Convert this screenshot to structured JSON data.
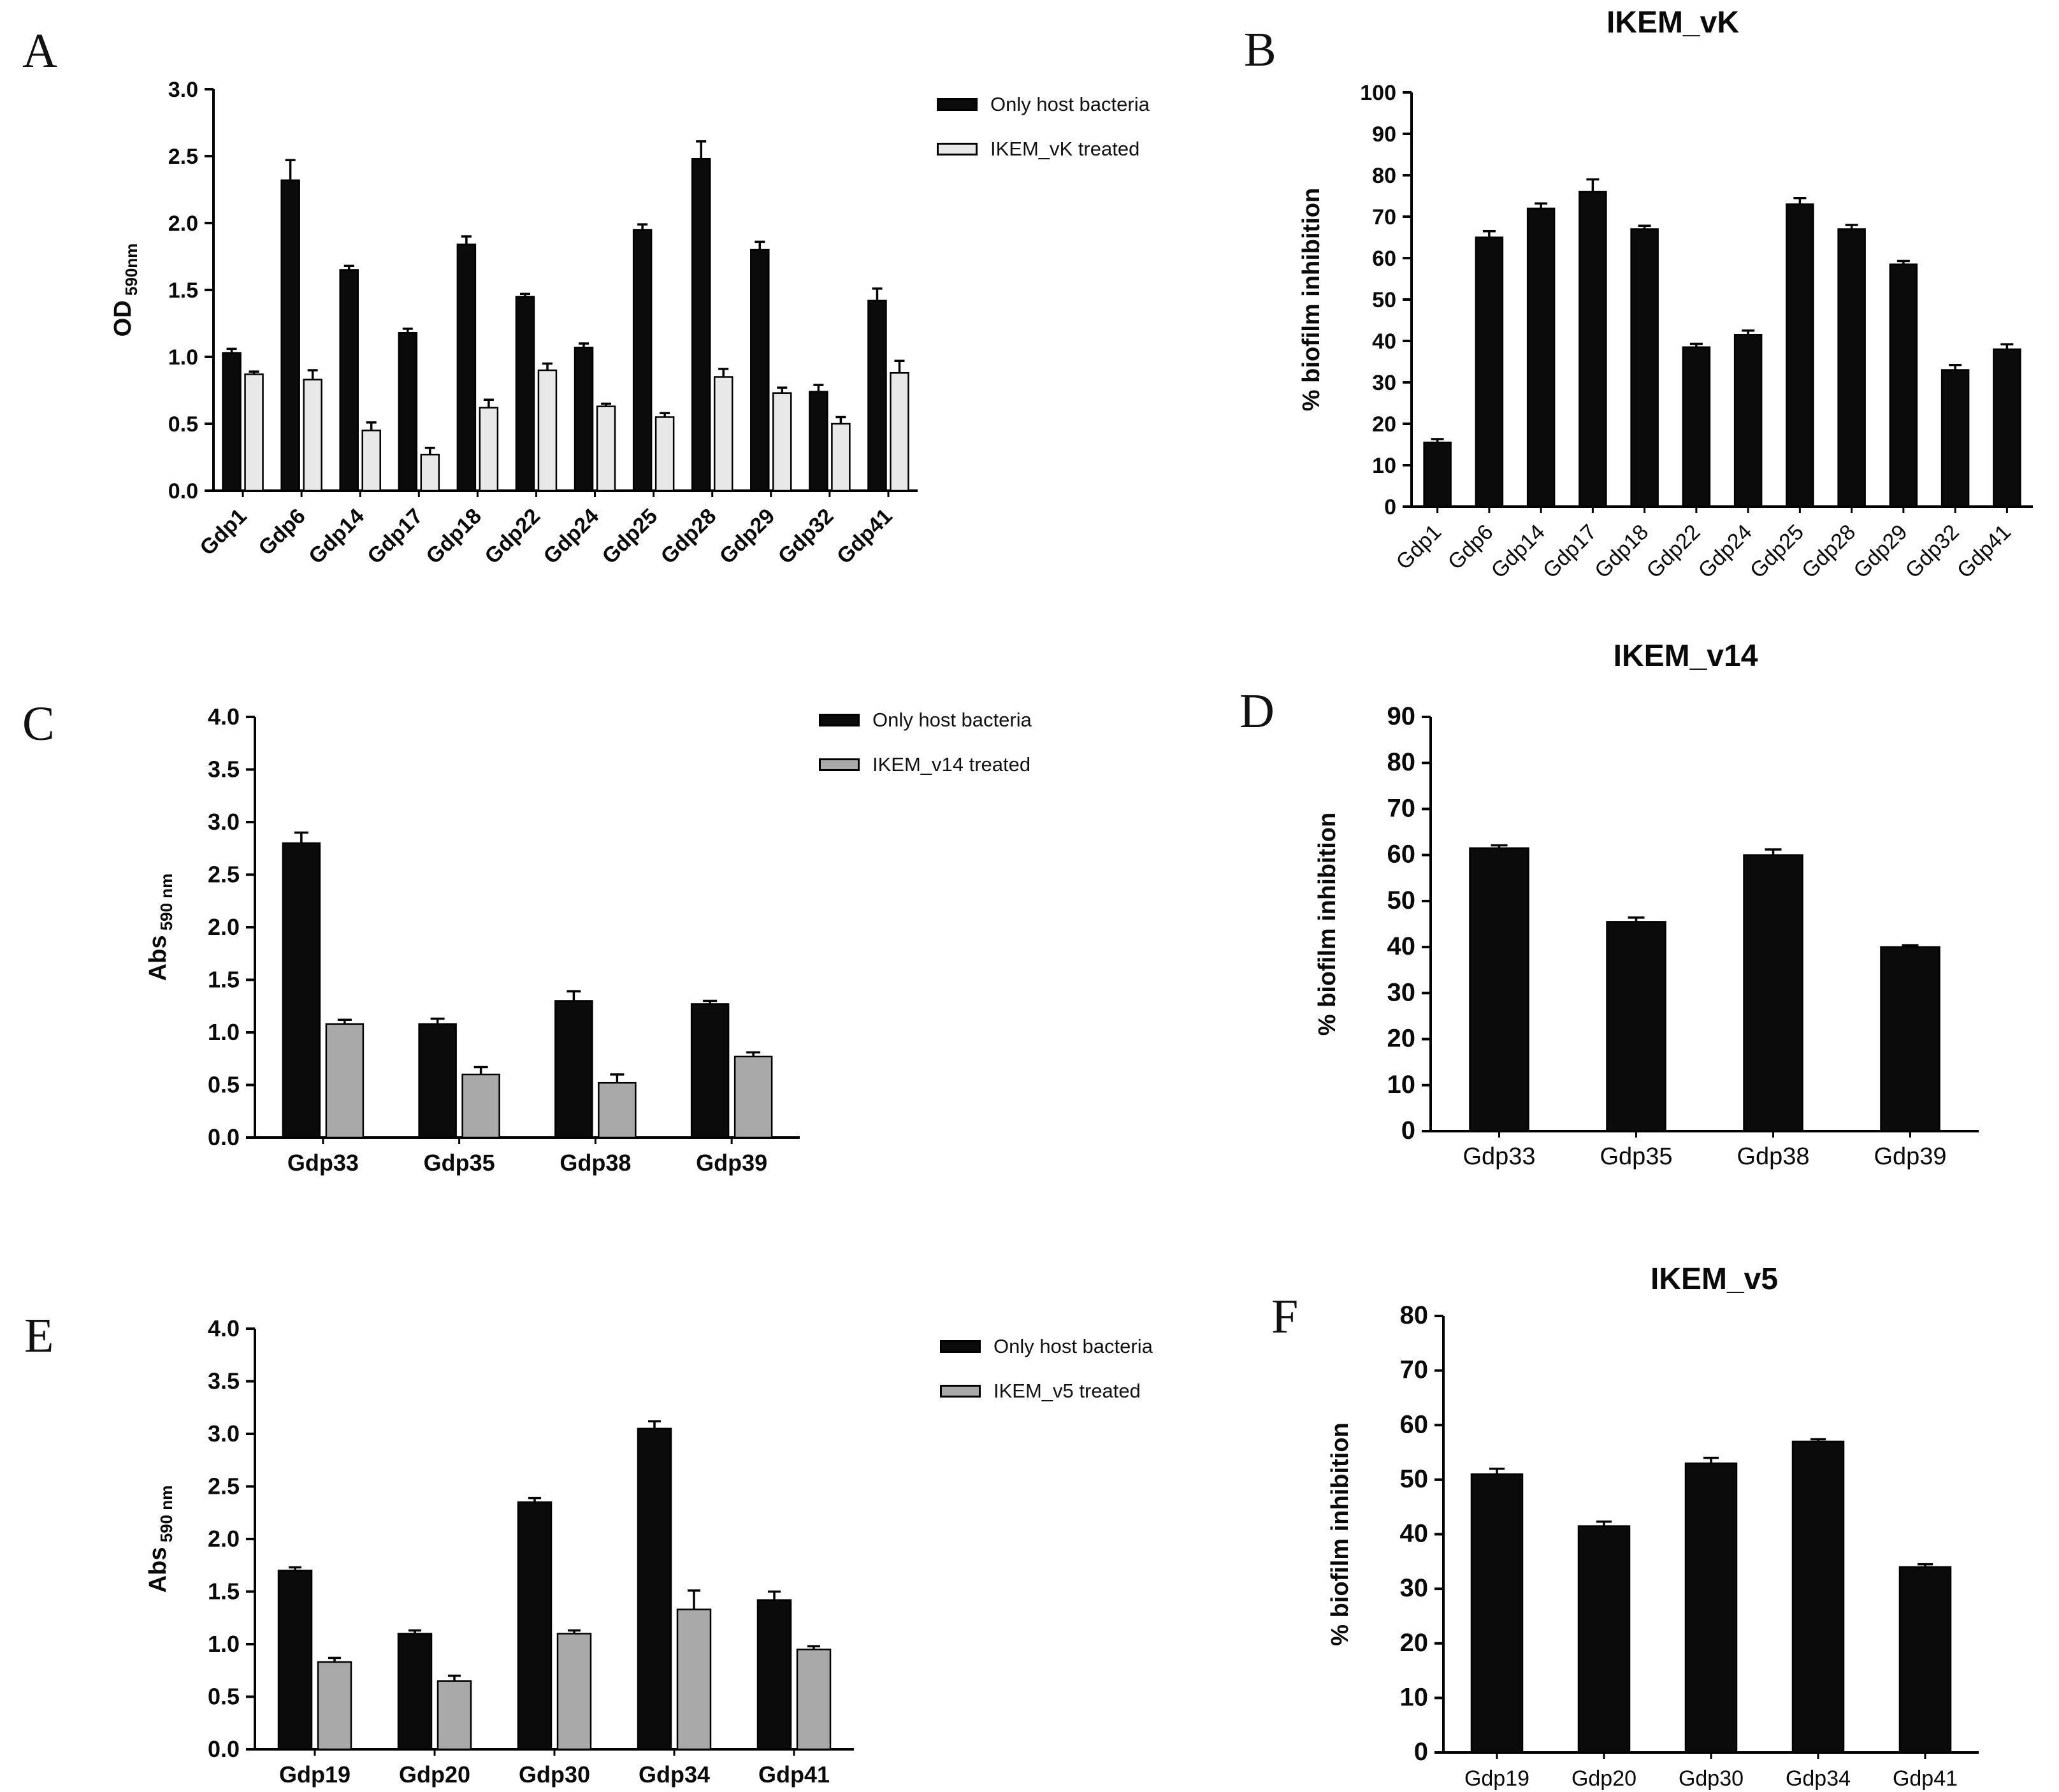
{
  "panels": {
    "a": {
      "letter": "A"
    },
    "b": {
      "letter": "B"
    },
    "c": {
      "letter": "C"
    },
    "d": {
      "letter": "D"
    },
    "e": {
      "letter": "E"
    },
    "f": {
      "letter": "F"
    }
  },
  "chart_data": [
    {
      "id": "A",
      "type": "bar",
      "grouped": true,
      "ylabel_main": "OD",
      "ylabel_sub": "590nm",
      "ylim": [
        0,
        3.0
      ],
      "ytick_step": 0.5,
      "ytick_decimals": 1,
      "categories": [
        "Gdp1",
        "Gdp6",
        "Gdp14",
        "Gdp17",
        "Gdp18",
        "Gdp22",
        "Gdp24",
        "Gdp25",
        "Gdp28",
        "Gdp29",
        "Gdp32",
        "Gdp41"
      ],
      "series": [
        {
          "name": "Only host bacteria",
          "color": "#0b0b0b",
          "values": [
            1.03,
            2.32,
            1.65,
            1.18,
            1.84,
            1.45,
            1.07,
            1.95,
            2.48,
            1.8,
            0.74,
            1.42
          ],
          "errors": [
            0.03,
            0.15,
            0.03,
            0.03,
            0.06,
            0.02,
            0.03,
            0.04,
            0.13,
            0.06,
            0.05,
            0.09
          ]
        },
        {
          "name": "IKEM_vK treated",
          "color": "#e8e8e8",
          "values": [
            0.87,
            0.83,
            0.45,
            0.27,
            0.62,
            0.9,
            0.63,
            0.55,
            0.85,
            0.73,
            0.5,
            0.88
          ],
          "errors": [
            0.02,
            0.07,
            0.06,
            0.05,
            0.06,
            0.05,
            0.02,
            0.03,
            0.06,
            0.04,
            0.05,
            0.09
          ]
        }
      ],
      "legend_position": "right-top"
    },
    {
      "id": "B",
      "type": "bar",
      "title": "IKEM_vK",
      "ylabel_main": "% biofilm inhibition",
      "ylim": [
        0,
        100
      ],
      "ytick_step": 10,
      "ytick_decimals": 0,
      "categories": [
        "Gdp1",
        "Gdp6",
        "Gdp14",
        "Gdp17",
        "Gdp18",
        "Gdp22",
        "Gdp24",
        "Gdp25",
        "Gdp28",
        "Gdp29",
        "Gdp32",
        "Gdp41"
      ],
      "series": [
        {
          "color": "#0b0b0b",
          "values": [
            15.5,
            65,
            72,
            76,
            67,
            38.5,
            41.5,
            73,
            67,
            58.5,
            33,
            38
          ],
          "errors": [
            0.8,
            1.5,
            1.2,
            3.0,
            0.8,
            0.8,
            1.0,
            1.5,
            1.0,
            0.8,
            1.2,
            1.2
          ]
        }
      ]
    },
    {
      "id": "C",
      "type": "bar",
      "grouped": true,
      "ylabel_main": "Abs",
      "ylabel_sub": "590 nm",
      "ylim": [
        0,
        4.0
      ],
      "ytick_step": 0.5,
      "ytick_decimals": 1,
      "categories": [
        "Gdp33",
        "Gdp35",
        "Gdp38",
        "Gdp39"
      ],
      "series": [
        {
          "name": "Only host bacteria",
          "color": "#0b0b0b",
          "values": [
            2.8,
            1.08,
            1.3,
            1.27
          ],
          "errors": [
            0.1,
            0.05,
            0.09,
            0.03
          ]
        },
        {
          "name": "IKEM_v14 treated",
          "color": "#a9a9a9",
          "values": [
            1.08,
            0.6,
            0.52,
            0.77
          ],
          "errors": [
            0.04,
            0.07,
            0.08,
            0.04
          ]
        }
      ],
      "legend_position": "right-top"
    },
    {
      "id": "D",
      "type": "bar",
      "title": "IKEM_v14",
      "ylabel_main": "% biofilm inhibition",
      "ylim": [
        0,
        90
      ],
      "ytick_step": 10,
      "ytick_decimals": 0,
      "categories": [
        "Gdp33",
        "Gdp35",
        "Gdp38",
        "Gdp39"
      ],
      "series": [
        {
          "color": "#0b0b0b",
          "values": [
            61.5,
            45.5,
            60,
            40
          ],
          "errors": [
            0.6,
            0.9,
            1.2,
            0.4
          ]
        }
      ]
    },
    {
      "id": "E",
      "type": "bar",
      "grouped": true,
      "ylabel_main": "Abs",
      "ylabel_sub": "590 nm",
      "ylim": [
        0,
        4.0
      ],
      "ytick_step": 0.5,
      "ytick_decimals": 1,
      "categories": [
        "Gdp19",
        "Gdp20",
        "Gdp30",
        "Gdp34",
        "Gdp41"
      ],
      "series": [
        {
          "name": "Only host bacteria",
          "color": "#0b0b0b",
          "values": [
            1.7,
            1.1,
            2.35,
            3.05,
            1.42
          ],
          "errors": [
            0.03,
            0.03,
            0.04,
            0.07,
            0.08
          ]
        },
        {
          "name": "IKEM_v5 treated",
          "color": "#a9a9a9",
          "values": [
            0.83,
            0.65,
            1.1,
            1.33,
            0.95
          ],
          "errors": [
            0.04,
            0.05,
            0.03,
            0.18,
            0.03
          ]
        }
      ],
      "legend_position": "right-top"
    },
    {
      "id": "F",
      "type": "bar",
      "title": "IKEM_v5",
      "ylabel_main": "% biofilm inhibition",
      "ylim": [
        0,
        80
      ],
      "ytick_step": 10,
      "ytick_decimals": 0,
      "categories": [
        "Gdp19",
        "Gdp20",
        "Gdp30",
        "Gdp34",
        "Gdp41"
      ],
      "series": [
        {
          "color": "#0b0b0b",
          "values": [
            51,
            41.5,
            53,
            57,
            34
          ],
          "errors": [
            1.0,
            0.8,
            1.0,
            0.4,
            0.5
          ]
        }
      ]
    }
  ]
}
